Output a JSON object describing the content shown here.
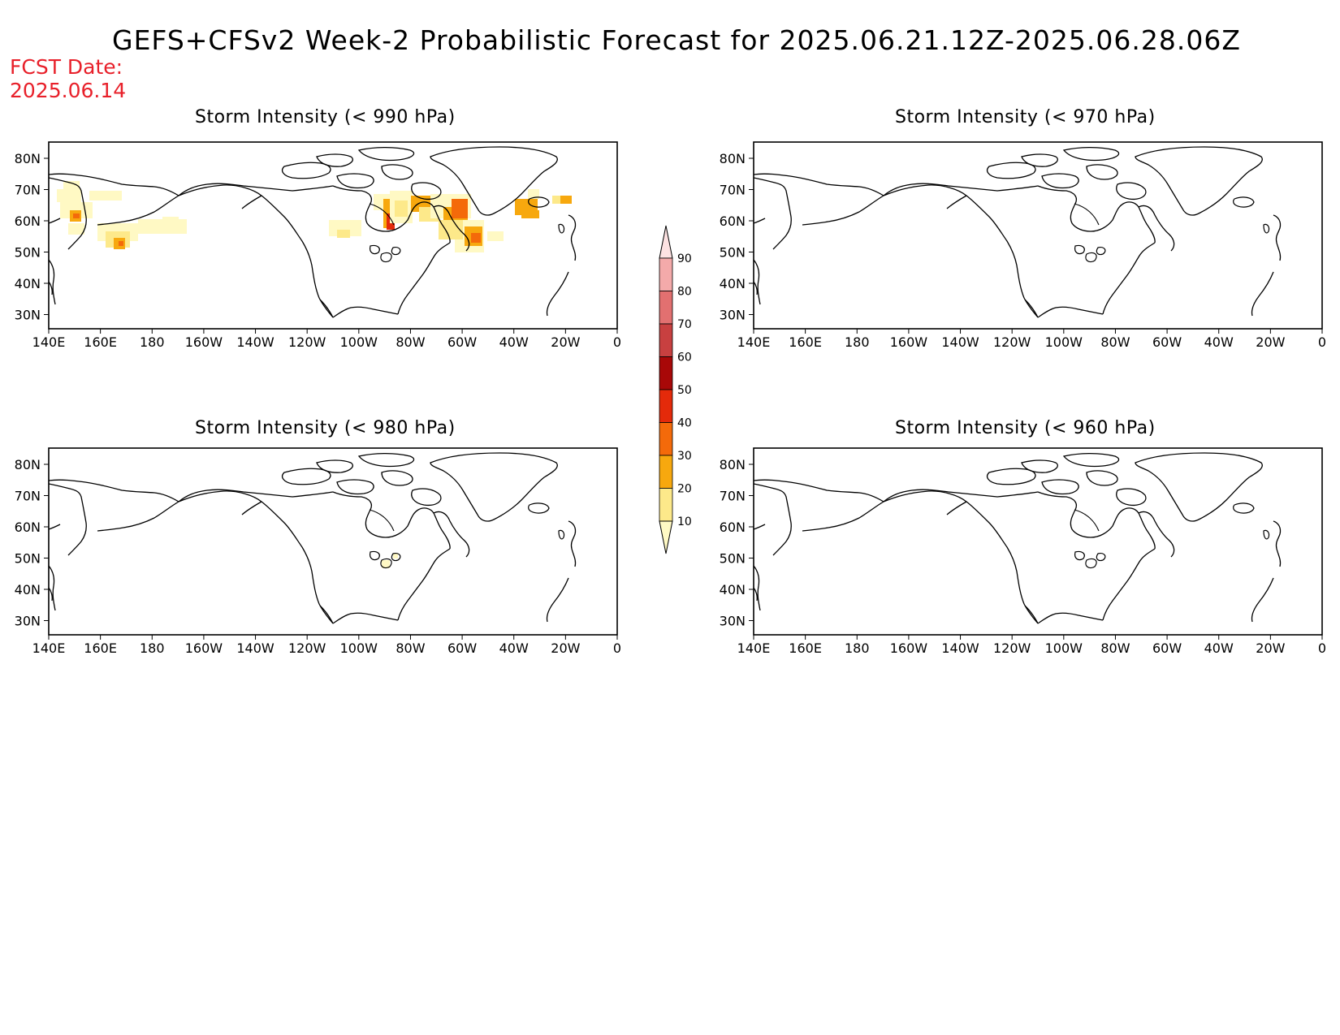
{
  "header": {
    "title": "GEFS+CFSv2 Week-2 Probabilistic Forecast for 2025.06.21.12Z-2025.06.28.06Z",
    "fcst_label": "FCST Date:",
    "fcst_date": "2025.06.14"
  },
  "axes": {
    "lon_labels": [
      "140E",
      "160E",
      "180",
      "160W",
      "140W",
      "120W",
      "100W",
      "80W",
      "60W",
      "40W",
      "20W",
      "0"
    ],
    "lat_labels": [
      "80N",
      "70N",
      "60N",
      "50N",
      "40N",
      "30N"
    ]
  },
  "colorbar": {
    "levels": [
      "10",
      "20",
      "30",
      "40",
      "50",
      "60",
      "70",
      "80",
      "90"
    ],
    "colors": [
      "#fff9c4",
      "#fde98a",
      "#f7a80e",
      "#f46a0a",
      "#e42a0a",
      "#a80808",
      "#c84040",
      "#e27070",
      "#f4aaaa",
      "#fde2e2"
    ]
  },
  "panels": [
    {
      "id": "p990",
      "title": "Storm Intensity (< 990 hPa)",
      "has_shading": true
    },
    {
      "id": "p970",
      "title": "Storm Intensity (< 970 hPa)",
      "has_shading": false
    },
    {
      "id": "p980",
      "title": "Storm Intensity (< 980 hPa)",
      "has_shading": true
    },
    {
      "id": "p960",
      "title": "Storm Intensity (< 960 hPa)",
      "has_shading": false
    }
  ]
}
